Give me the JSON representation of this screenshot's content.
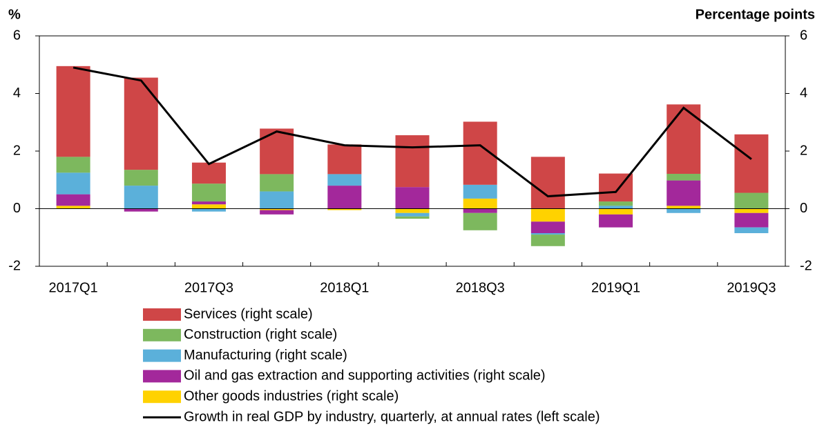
{
  "chart_data": {
    "type": "bar",
    "y_label": "%",
    "y2_label": "Percentage points",
    "categories": [
      "2017Q1",
      null,
      "2017Q3",
      null,
      "2018Q1",
      null,
      "2018Q3",
      null,
      "2019Q1",
      null,
      "2019Q3"
    ],
    "ylim": [
      -2,
      6
    ],
    "yticks": [
      -2,
      0,
      2,
      4,
      6
    ],
    "y2lim": [
      -2,
      6
    ],
    "y2ticks": [
      -2,
      0,
      2,
      4,
      6
    ],
    "series": [
      {
        "name": "Services (right scale)",
        "color": "#cf4647",
        "axis": "y2",
        "type": "bar",
        "values": [
          3.15,
          3.2,
          0.73,
          1.58,
          1.03,
          1.8,
          2.19,
          1.8,
          0.97,
          2.41,
          2.03
        ]
      },
      {
        "name": "Construction (right scale)",
        "color": "#7db85e",
        "axis": "y2",
        "type": "bar",
        "values": [
          0.55,
          0.55,
          0.62,
          0.6,
          0,
          -0.08,
          -0.6,
          -0.4,
          0.15,
          0.23,
          0.55
        ]
      },
      {
        "name": "Manufacturing (right scale)",
        "color": "#5bb0da",
        "axis": "y2",
        "type": "bar",
        "values": [
          0.75,
          0.8,
          -0.1,
          0.6,
          0.4,
          -0.12,
          0.48,
          -0.05,
          0.1,
          -0.15,
          -0.2
        ]
      },
      {
        "name": "Oil and gas extraction and supporting activities (right scale)",
        "color": "#a3289b",
        "axis": "y2",
        "type": "bar",
        "values": [
          0.4,
          -0.1,
          0.1,
          -0.15,
          0.8,
          0.75,
          -0.15,
          -0.4,
          -0.45,
          0.88,
          -0.5
        ]
      },
      {
        "name": "Other goods industries (right scale)",
        "color": "#ffd200",
        "axis": "y2",
        "type": "bar",
        "values": [
          0.1,
          0,
          0.15,
          -0.05,
          -0.05,
          -0.15,
          0.35,
          -0.45,
          -0.2,
          0.1,
          -0.15
        ]
      },
      {
        "name": "Growth in real GDP by industry, quarterly, at annual rates (left scale)",
        "color": "#000000",
        "axis": "y",
        "type": "line",
        "values": [
          4.9,
          4.45,
          1.55,
          2.68,
          2.2,
          2.13,
          2.2,
          0.43,
          0.58,
          3.5,
          1.72
        ]
      }
    ]
  }
}
